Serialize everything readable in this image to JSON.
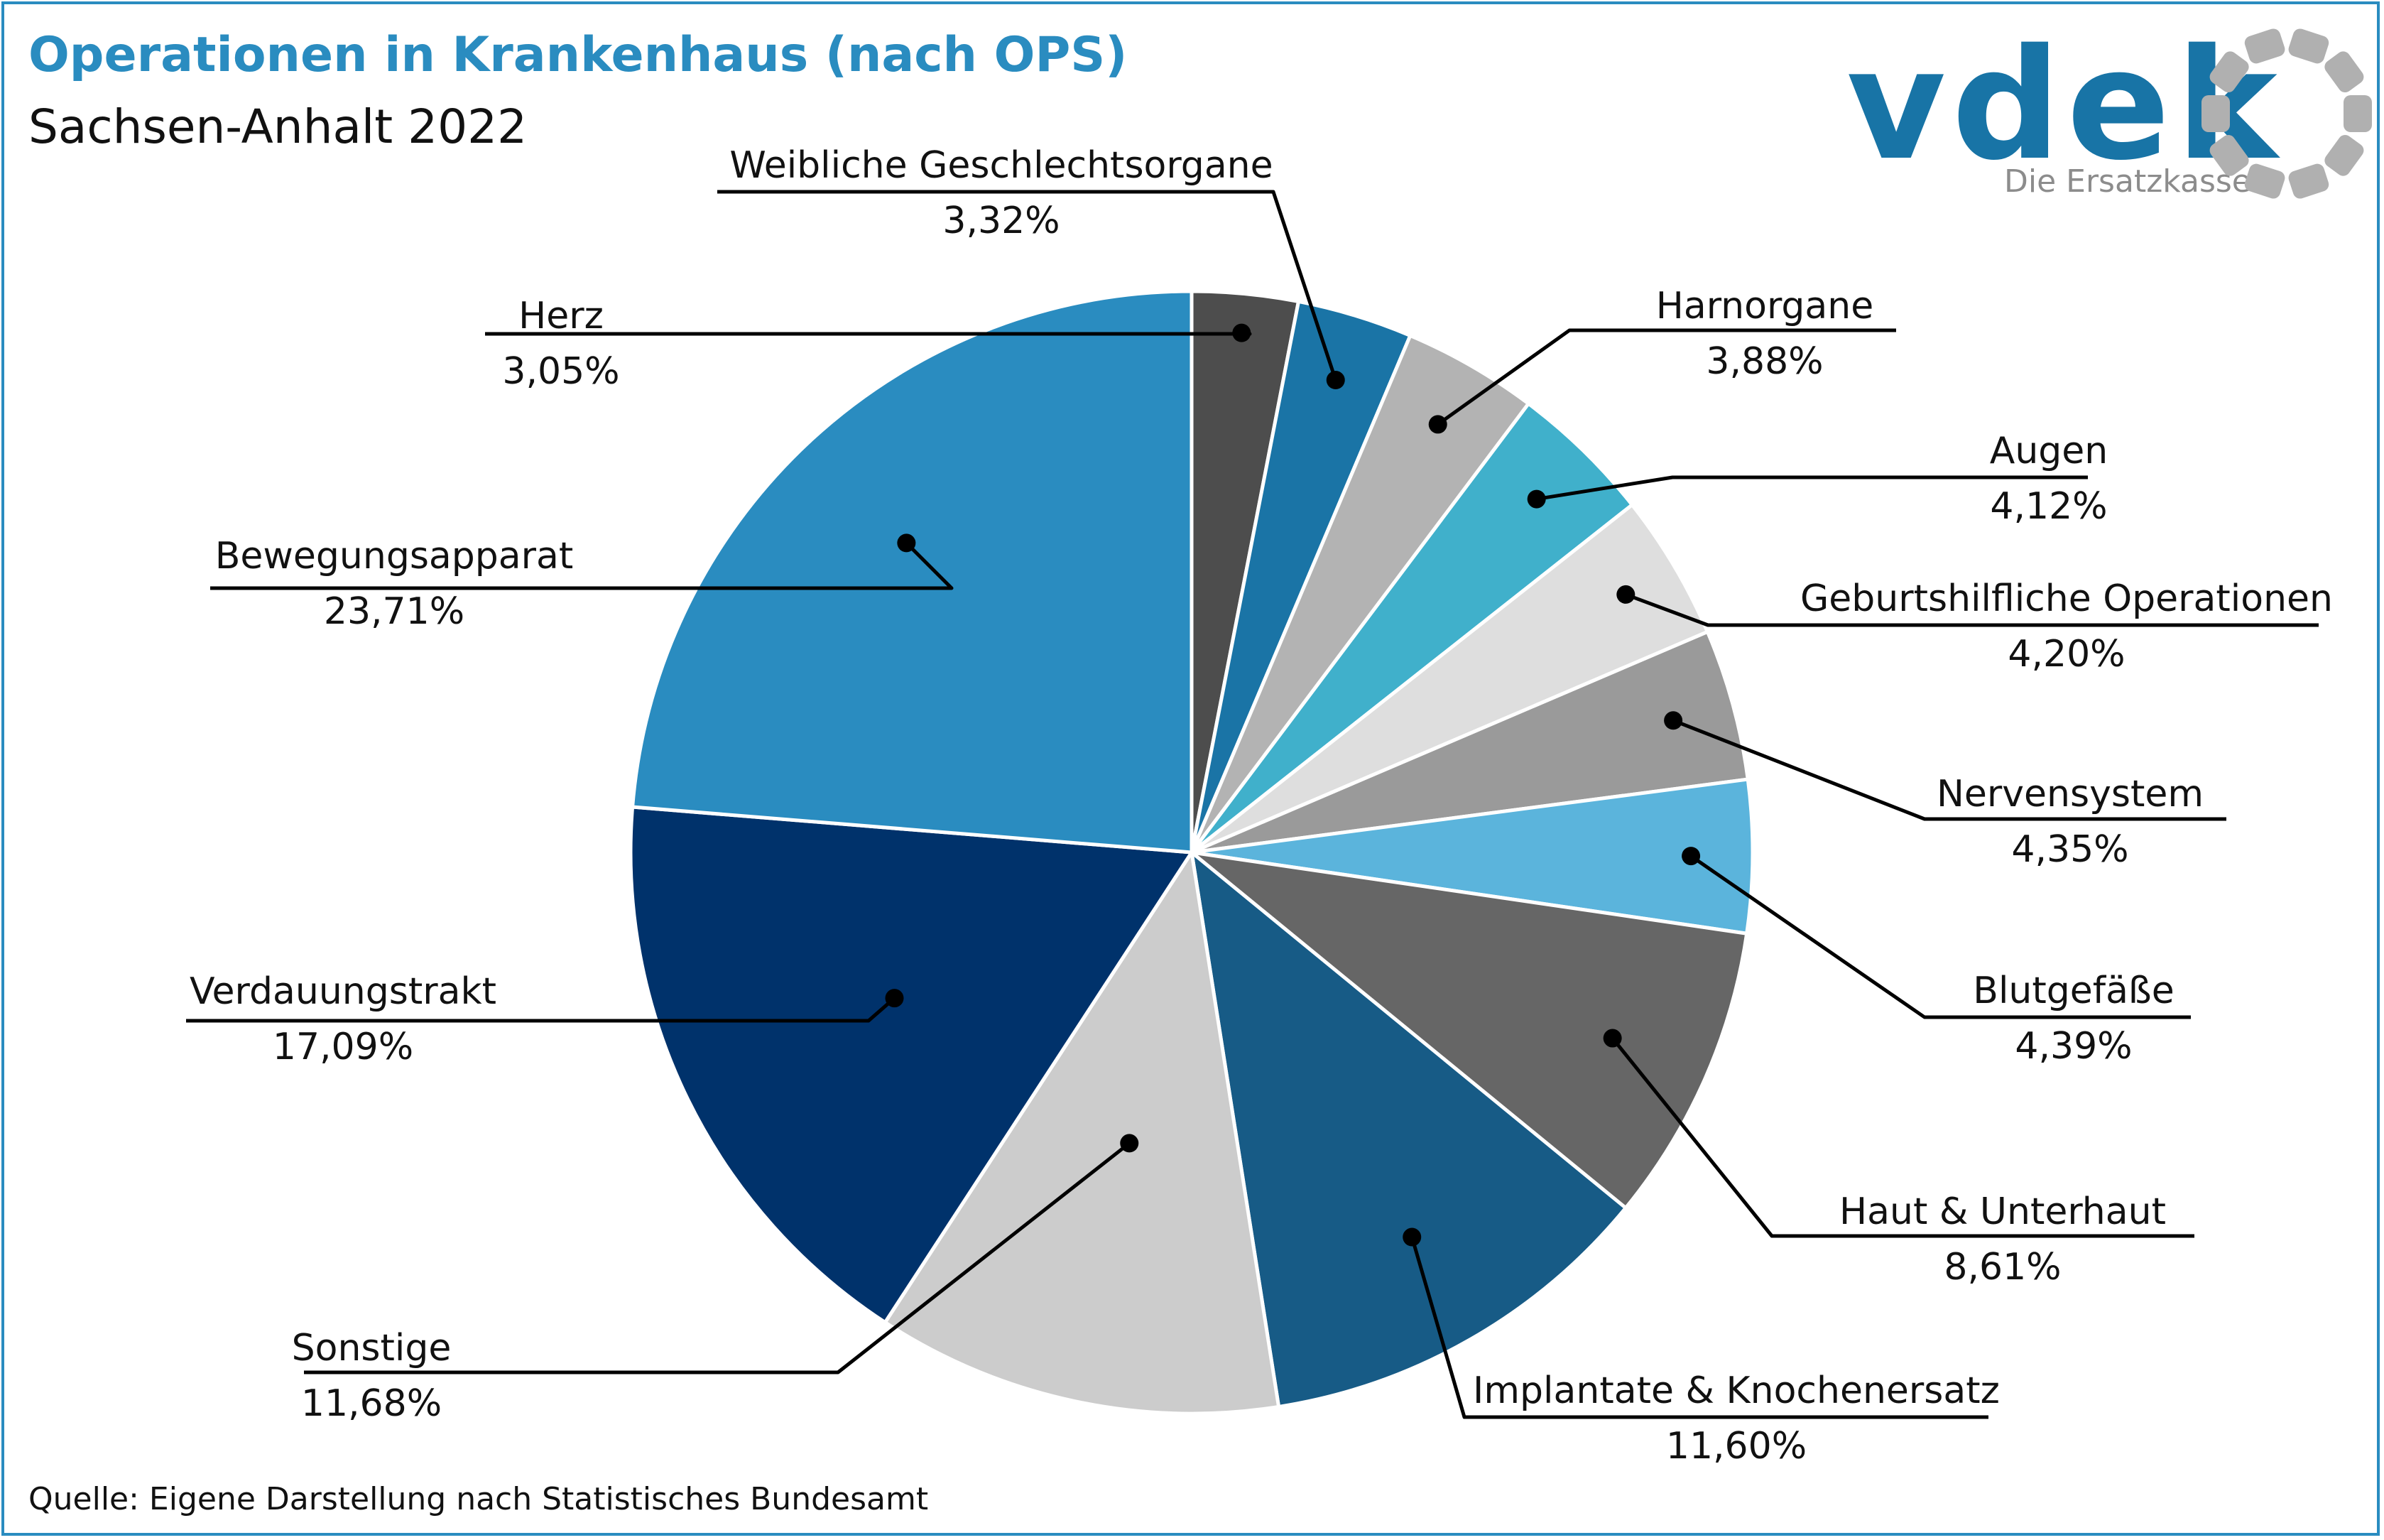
{
  "header": {
    "title": "Operationen in Krankenhaus (nach OPS)",
    "subtitle": "Sachsen-Anhalt 2022"
  },
  "footer": {
    "source": "Quelle: Eigene Darstellung nach Statistisches Bundesamt"
  },
  "logo": {
    "word": "vdek",
    "tagline": "Die Ersatzkassen",
    "icon": "ring-of-gray-segments-icon",
    "color": "#1874a6",
    "ring_color": "#b0b0b0"
  },
  "colors": {
    "frame": "#2a8cc0",
    "title": "#2a8cc0"
  },
  "chart_data": {
    "type": "pie",
    "start_angle": "12 o'clock",
    "direction": "clockwise",
    "slices": [
      {
        "name": "Herz",
        "label": "3,05%",
        "value": 3.05,
        "color": "#4d4d4d"
      },
      {
        "name": "Weibliche Geschlechtsorgane",
        "label": "3,32%",
        "value": 3.32,
        "color": "#1a74a6"
      },
      {
        "name": "Harnorgane",
        "label": "3,88%",
        "value": 3.88,
        "color": "#b3b3b3"
      },
      {
        "name": "Augen",
        "label": "4,12%",
        "value": 4.12,
        "color": "#40b0cb"
      },
      {
        "name": "Geburtshilfliche Operationen",
        "label": "4,20%",
        "value": 4.2,
        "color": "#dedede"
      },
      {
        "name": "Nervensystem",
        "label": "4,35%",
        "value": 4.35,
        "color": "#9a9a9a"
      },
      {
        "name": "Blutgefäße",
        "label": "4,39%",
        "value": 4.39,
        "color": "#5bb4dc"
      },
      {
        "name": "Haut & Unterhaut",
        "label": "8,61%",
        "value": 8.61,
        "color": "#666666"
      },
      {
        "name": "Implantate & Knochenersatz",
        "label": "11,60%",
        "value": 11.6,
        "color": "#175b86"
      },
      {
        "name": "Sonstige",
        "label": "11,68%",
        "value": 11.68,
        "color": "#cccccc"
      },
      {
        "name": "Verdauungstrakt",
        "label": "17,09%",
        "value": 17.09,
        "color": "#00326b"
      },
      {
        "name": "Bewegungsapparat",
        "label": "23,71%",
        "value": 23.71,
        "color": "#2a8cc0"
      }
    ]
  }
}
